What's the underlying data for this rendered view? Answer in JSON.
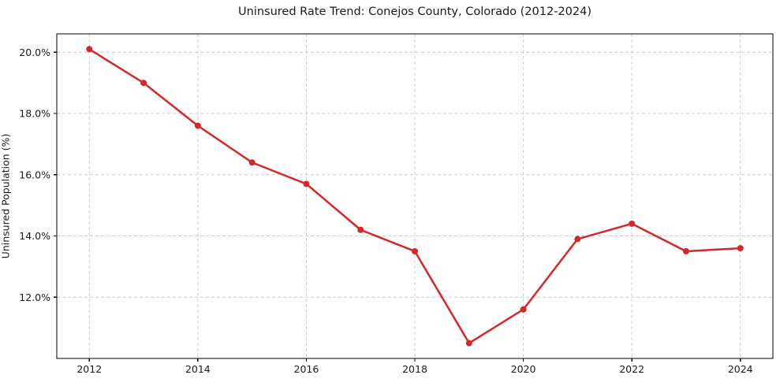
{
  "chart_data": {
    "type": "line",
    "title": "Uninsured Rate Trend: Conejos County, Colorado (2012-2024)",
    "xlabel": "",
    "ylabel": "Uninsured Population (%)",
    "x": [
      2012,
      2013,
      2014,
      2015,
      2016,
      2017,
      2018,
      2019,
      2020,
      2021,
      2022,
      2023,
      2024
    ],
    "values": [
      20.1,
      19.0,
      17.6,
      16.4,
      15.7,
      14.2,
      13.5,
      10.5,
      11.6,
      13.9,
      14.4,
      13.5,
      13.6
    ],
    "xticks": [
      2012,
      2014,
      2016,
      2018,
      2020,
      2022,
      2024
    ],
    "yticks": [
      {
        "value": 20.0,
        "label": "20.0%"
      },
      {
        "value": 18.0,
        "label": "18.0%"
      },
      {
        "value": 16.0,
        "label": "16.0%"
      },
      {
        "value": 14.0,
        "label": "14.0%"
      },
      {
        "value": 12.0,
        "label": "12.0%"
      }
    ],
    "xlim": [
      2011.4,
      2024.6
    ],
    "ylim": [
      10.0,
      20.6
    ],
    "grid": "dashed-both",
    "legend_position": "none",
    "colors": {
      "line": "#d62728",
      "marker": "#d62728",
      "grid": "#cccccc",
      "frame": "#000000",
      "text": "#1a1a1a"
    }
  }
}
